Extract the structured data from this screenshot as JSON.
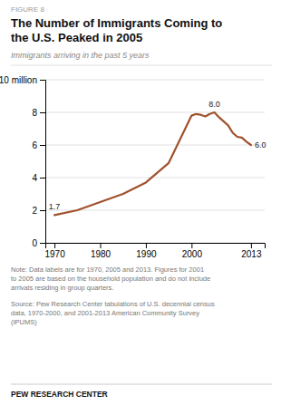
{
  "chart_data": {
    "type": "line",
    "figure_label": "FIGURE 8",
    "title": "The Number of Immigrants Coming to\nthe U.S. Peaked in 2005",
    "subtitle": "Immigrants arriving in the past 5 years",
    "x": [
      1970,
      1975,
      1980,
      1985,
      1990,
      1995,
      2000,
      2001,
      2002,
      2003,
      2004,
      2005,
      2006,
      2007,
      2008,
      2009,
      2010,
      2011,
      2012,
      2013
    ],
    "values": [
      1.7,
      2.0,
      2.5,
      3.0,
      3.7,
      4.9,
      7.8,
      7.9,
      7.85,
      7.75,
      7.9,
      8.0,
      7.7,
      7.45,
      7.2,
      6.75,
      6.5,
      6.45,
      6.2,
      6.0
    ],
    "color": "#A0522D",
    "xlim": [
      1968,
      2016
    ],
    "xticks": [
      1970,
      1980,
      1990,
      2000,
      2013
    ],
    "ylim": [
      0,
      10
    ],
    "yticks": [
      0,
      2,
      4,
      6,
      8,
      {
        "value": 10,
        "label": "10 million"
      }
    ],
    "grid": true,
    "annotations": [
      {
        "x": 1970,
        "y": 1.7,
        "text": "1.7"
      },
      {
        "x": 2005,
        "y": 8.0,
        "text": "8.0"
      },
      {
        "x": 2013,
        "y": 6.0,
        "text": "6.0"
      }
    ],
    "note": "Note: Data labels are for 1970, 2005 and 2013.  Figures for 2001\nto 2005  are based on the household population and do not include\narrivals residing in group quarters.",
    "source": "Source: Pew Research Center tabulations of U.S. decennial census\ndata, 1970-2000,  and 2001-2013 American Community Survey\n(IPUMS)",
    "brand": "PEW RESEARCH CENTER"
  }
}
